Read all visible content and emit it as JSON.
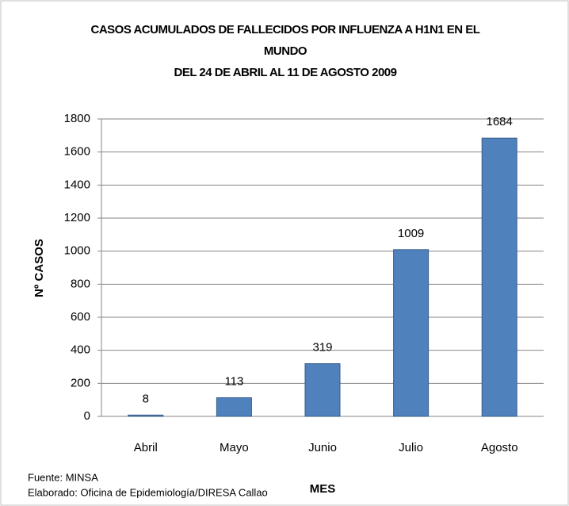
{
  "chart_data": {
    "type": "bar",
    "title": "CASOS ACUMULADOS DE FALLECIDOS POR INFLUENZA A H1N1 EN EL MUNDO",
    "subtitle": "DEL 24 DE ABRIL AL 11 DE AGOSTO 2009",
    "x_label": "MES",
    "y_label": "Nº CASOS",
    "categories": [
      "Abril",
      "Mayo",
      "Junio",
      "Julio",
      "Agosto"
    ],
    "values": [
      8,
      113,
      319,
      1009,
      1684
    ],
    "color": "#4f81bd",
    "ylim": [
      0,
      1800
    ],
    "yticks": [
      0,
      200,
      400,
      600,
      800,
      1000,
      1200,
      1400,
      1600,
      1800
    ],
    "grid": true,
    "notes": [
      "Fuente: MINSA",
      "Elaborado: Oficina de Epidemiología/DIRESA Callao"
    ]
  }
}
